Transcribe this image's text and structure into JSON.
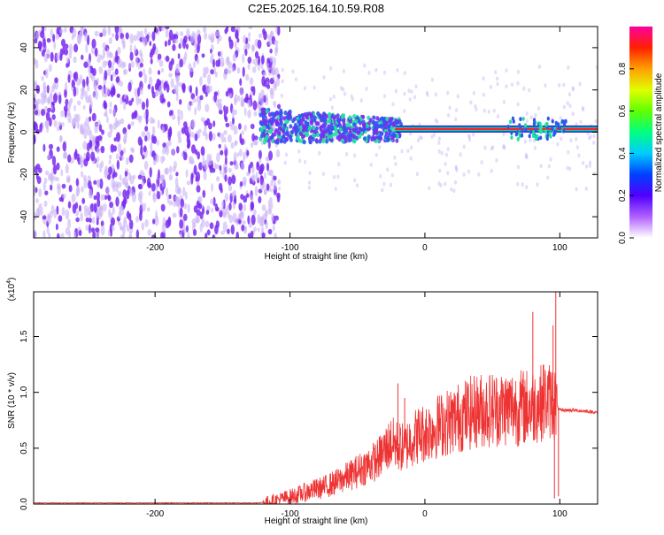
{
  "title": "C2E5.2025.164.10.59.R08",
  "colors": {
    "snr_line": "#ee3333",
    "scatter_noise": "#7b2cf0",
    "scatter_noise_light": "#c9b3f5",
    "scatter_mid": "#3355ee",
    "scatter_high": "#22e0a0"
  },
  "spectrogram": {
    "type": "heatmap",
    "xlabel": "Height of straight line (km)",
    "ylabel": "Frequency (Hz)",
    "xlim": [
      -290,
      128
    ],
    "ylim": [
      -50,
      50
    ],
    "xticks": [
      -200,
      -100,
      0,
      100
    ],
    "xtick_labels": [
      "-200",
      "-100",
      "0",
      "100"
    ],
    "yticks": [
      -40,
      -20,
      0,
      20,
      40
    ],
    "ytick_labels": [
      "-40",
      "-20",
      "0",
      "20",
      "40"
    ],
    "noise_region": [
      -290,
      -118
    ],
    "signal_line_freq": 1.5,
    "colorbar": {
      "label": "Normalized spectral amplitude",
      "range": [
        0.0,
        1.0
      ],
      "ticks": [
        0.0,
        0.2,
        0.4,
        0.6,
        0.8
      ],
      "tick_labels": [
        "0.0",
        "0.2",
        "0.4",
        "0.6",
        "0.8"
      ]
    }
  },
  "snr_chart": {
    "type": "line",
    "xlabel": "Height of straight line (km)",
    "ylabel": "SNR (10 * v/v)",
    "multiplier": "(x10",
    "multiplier_exp": "4",
    "multiplier_close": ")",
    "xlim": [
      -290,
      128
    ],
    "ylim": [
      0,
      1.9
    ],
    "xticks": [
      -200,
      -100,
      0,
      100
    ],
    "xtick_labels": [
      "-200",
      "-100",
      "0",
      "100"
    ],
    "yticks": [
      0.0,
      0.5,
      1.0,
      1.5
    ],
    "ytick_labels": [
      "0.0",
      "0.5",
      "1.0",
      "1.5"
    ],
    "series": [
      {
        "x": [
          -290,
          -240,
          -190,
          -150,
          -125,
          -115,
          -105,
          -95,
          -85,
          -75,
          -65,
          -55,
          -45,
          -35,
          -30,
          -25,
          -20,
          -15,
          -10,
          -5,
          0,
          10,
          20,
          30,
          40,
          50,
          60,
          65,
          70,
          75,
          80,
          85,
          90,
          95,
          100,
          105,
          110,
          120,
          128
        ],
        "y": [
          0.01,
          0.01,
          0.01,
          0.01,
          0.01,
          0.02,
          0.05,
          0.08,
          0.12,
          0.15,
          0.2,
          0.26,
          0.33,
          0.4,
          0.48,
          0.55,
          0.52,
          0.5,
          0.58,
          0.62,
          0.64,
          0.7,
          0.75,
          0.8,
          0.84,
          0.85,
          0.86,
          0.87,
          0.86,
          0.87,
          0.88,
          0.9,
          0.93,
          0.92,
          0.84,
          0.84,
          0.84,
          0.83,
          0.82
        ]
      }
    ],
    "spikes": [
      {
        "x": -20,
        "y": 1.08
      },
      {
        "x": -15,
        "y": 0.95
      },
      {
        "x": 10,
        "y": 0.9
      },
      {
        "x": 80,
        "y": 1.72
      },
      {
        "x": 88,
        "y": 1.25
      },
      {
        "x": 95,
        "y": 1.6
      },
      {
        "x": 97,
        "y": 1.9
      },
      {
        "x": 99,
        "y": 0.07
      },
      {
        "x": 96,
        "y": 0.05
      }
    ]
  }
}
